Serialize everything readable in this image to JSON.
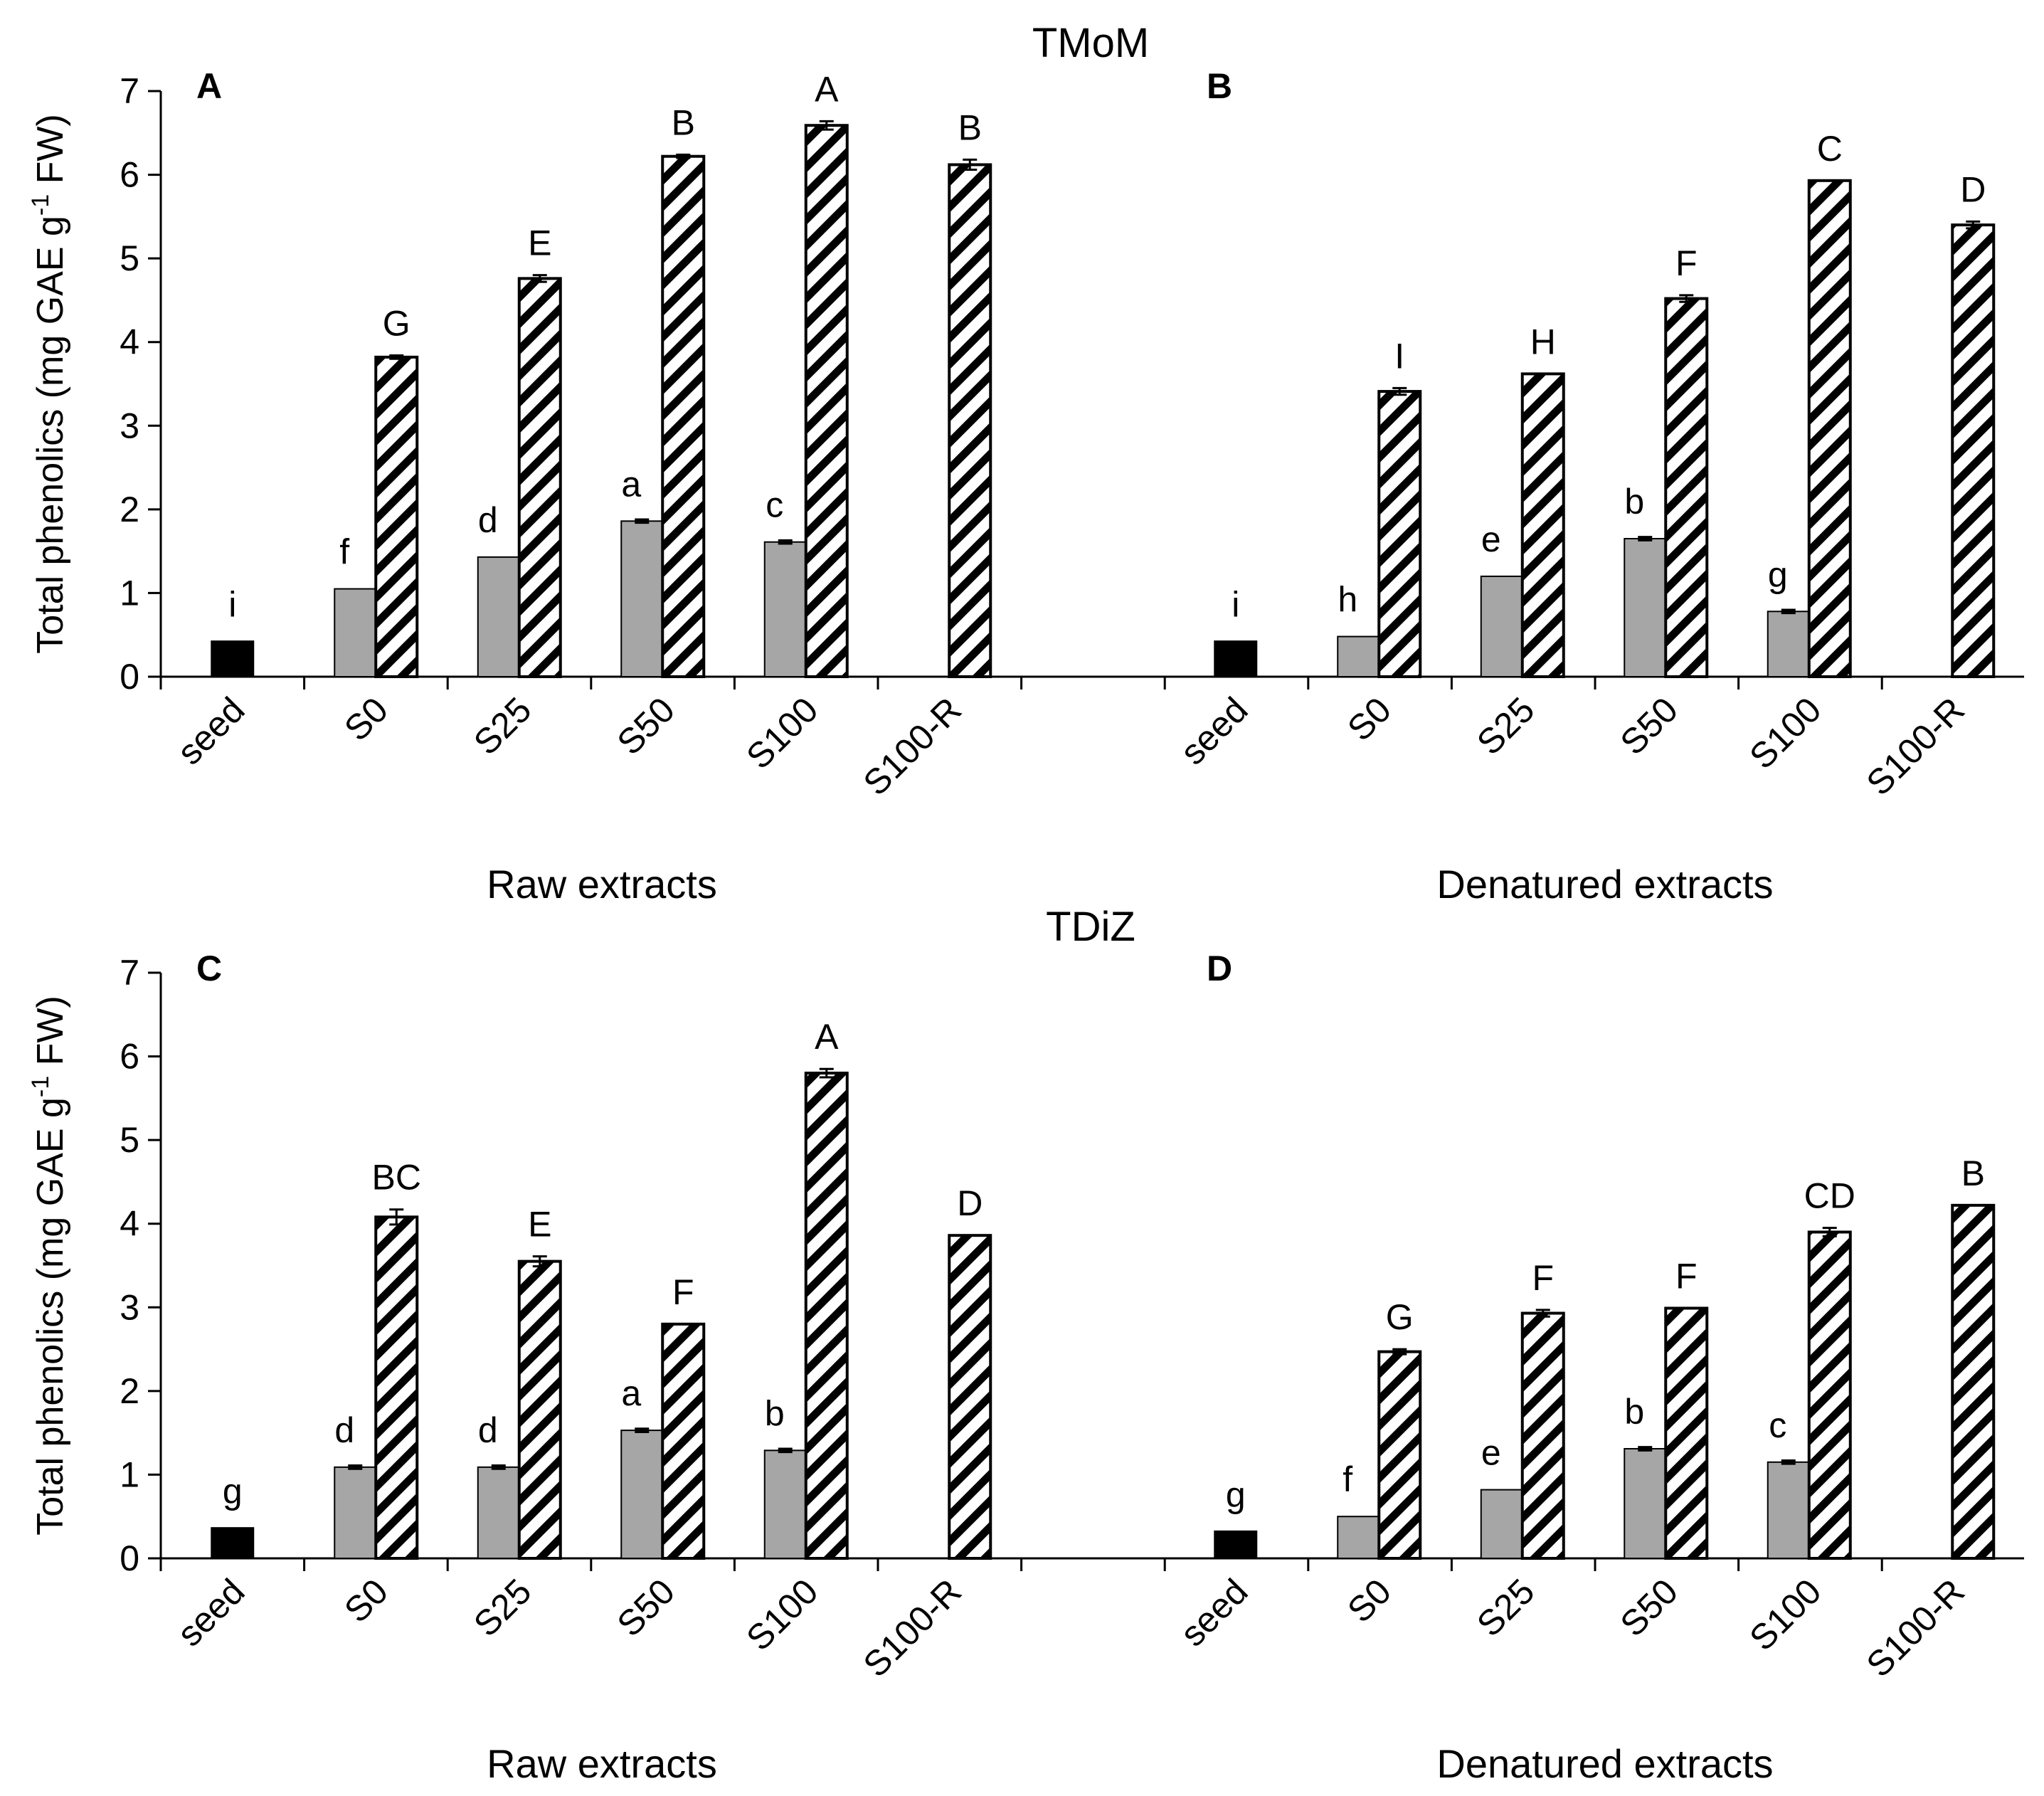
{
  "figure": {
    "y_axis_label": "Total phenolics (mg GAE g-1 FW)",
    "y_axis_parts": {
      "pre": "Total phenolics (mg GAE g",
      "sup": "-1",
      "post": " FW)"
    },
    "colors": {
      "seed": "#000000",
      "gray": "#a6a6a6",
      "hatch_stroke": "#000000",
      "hatch_bg": "#ffffff"
    }
  },
  "chart_data": [
    {
      "type": "bar",
      "title": "TMoM",
      "panels": [
        {
          "panel_label": "A",
          "xlabel": "Raw extracts",
          "categories": [
            "seed",
            "S0",
            "S25",
            "S50",
            "S100",
            "S100-R"
          ],
          "seed": {
            "value": 0.42,
            "err": 0.0,
            "letter": "i"
          },
          "series": [
            {
              "name": "gray",
              "values": [
                null,
                1.05,
                1.43,
                1.86,
                1.61,
                null
              ],
              "errors": [
                null,
                0.0,
                0.0,
                0.02,
                0.02,
                null
              ],
              "letters": [
                null,
                "f",
                "d",
                "a",
                "c",
                null
              ]
            },
            {
              "name": "hatched",
              "values": [
                null,
                3.82,
                4.76,
                6.22,
                6.59,
                6.12
              ],
              "errors": [
                null,
                0.02,
                0.04,
                0.02,
                0.05,
                0.06
              ],
              "letters": [
                null,
                "G",
                "E",
                "B",
                "A",
                "B"
              ]
            }
          ],
          "ylim": [
            0,
            7
          ]
        },
        {
          "panel_label": "B",
          "xlabel": "Denatured extracts",
          "categories": [
            "seed",
            "S0",
            "S25",
            "S50",
            "S100",
            "S100-R"
          ],
          "seed": {
            "value": 0.42,
            "err": 0.0,
            "letter": "i"
          },
          "series": [
            {
              "name": "gray",
              "values": [
                null,
                0.48,
                1.2,
                1.65,
                0.78,
                null
              ],
              "errors": [
                null,
                0.0,
                0.0,
                0.02,
                0.02,
                null
              ],
              "letters": [
                null,
                "h",
                "e",
                "b",
                "g",
                null
              ]
            },
            {
              "name": "hatched",
              "values": [
                null,
                3.41,
                3.62,
                4.52,
                5.93,
                5.4
              ],
              "errors": [
                null,
                0.04,
                0.0,
                0.04,
                0.0,
                0.04
              ],
              "letters": [
                null,
                "I",
                "H",
                "F",
                "C",
                "D"
              ]
            }
          ],
          "ylim": [
            0,
            7
          ]
        }
      ],
      "yticks": [
        0,
        1,
        2,
        3,
        4,
        5,
        6,
        7
      ]
    },
    {
      "type": "bar",
      "title": "TDiZ",
      "panels": [
        {
          "panel_label": "C",
          "xlabel": "Raw extracts",
          "categories": [
            "seed",
            "S0",
            "S25",
            "S50",
            "S100",
            "S100-R"
          ],
          "seed": {
            "value": 0.36,
            "err": 0.0,
            "letter": "g"
          },
          "series": [
            {
              "name": "gray",
              "values": [
                null,
                1.09,
                1.09,
                1.53,
                1.29,
                null
              ],
              "errors": [
                null,
                0.02,
                0.02,
                0.02,
                0.02,
                null
              ],
              "letters": [
                null,
                "d",
                "d",
                "a",
                "b",
                null
              ]
            },
            {
              "name": "hatched",
              "values": [
                null,
                4.08,
                3.55,
                2.8,
                5.8,
                3.86
              ],
              "errors": [
                null,
                0.09,
                0.06,
                0.0,
                0.05,
                0.0
              ],
              "letters": [
                null,
                "BC",
                "E",
                "F",
                "A",
                "D"
              ]
            }
          ],
          "ylim": [
            0,
            7
          ]
        },
        {
          "panel_label": "D",
          "xlabel": "Denatured extracts",
          "categories": [
            "seed",
            "S0",
            "S25",
            "S50",
            "S100",
            "S100-R"
          ],
          "seed": {
            "value": 0.32,
            "err": 0.0,
            "letter": "g"
          },
          "series": [
            {
              "name": "gray",
              "values": [
                null,
                0.5,
                0.82,
                1.31,
                1.15,
                null
              ],
              "errors": [
                null,
                0.0,
                0.0,
                0.02,
                0.02,
                null
              ],
              "letters": [
                null,
                "f",
                "e",
                "b",
                "c",
                null
              ]
            },
            {
              "name": "hatched",
              "values": [
                null,
                2.47,
                2.93,
                2.99,
                3.9,
                4.22
              ],
              "errors": [
                null,
                0.03,
                0.04,
                0.0,
                0.05,
                0.0
              ],
              "letters": [
                null,
                "G",
                "F",
                "F",
                "CD",
                "B"
              ]
            }
          ],
          "ylim": [
            0,
            7
          ]
        }
      ],
      "yticks": [
        0,
        1,
        2,
        3,
        4,
        5,
        6,
        7
      ]
    }
  ]
}
